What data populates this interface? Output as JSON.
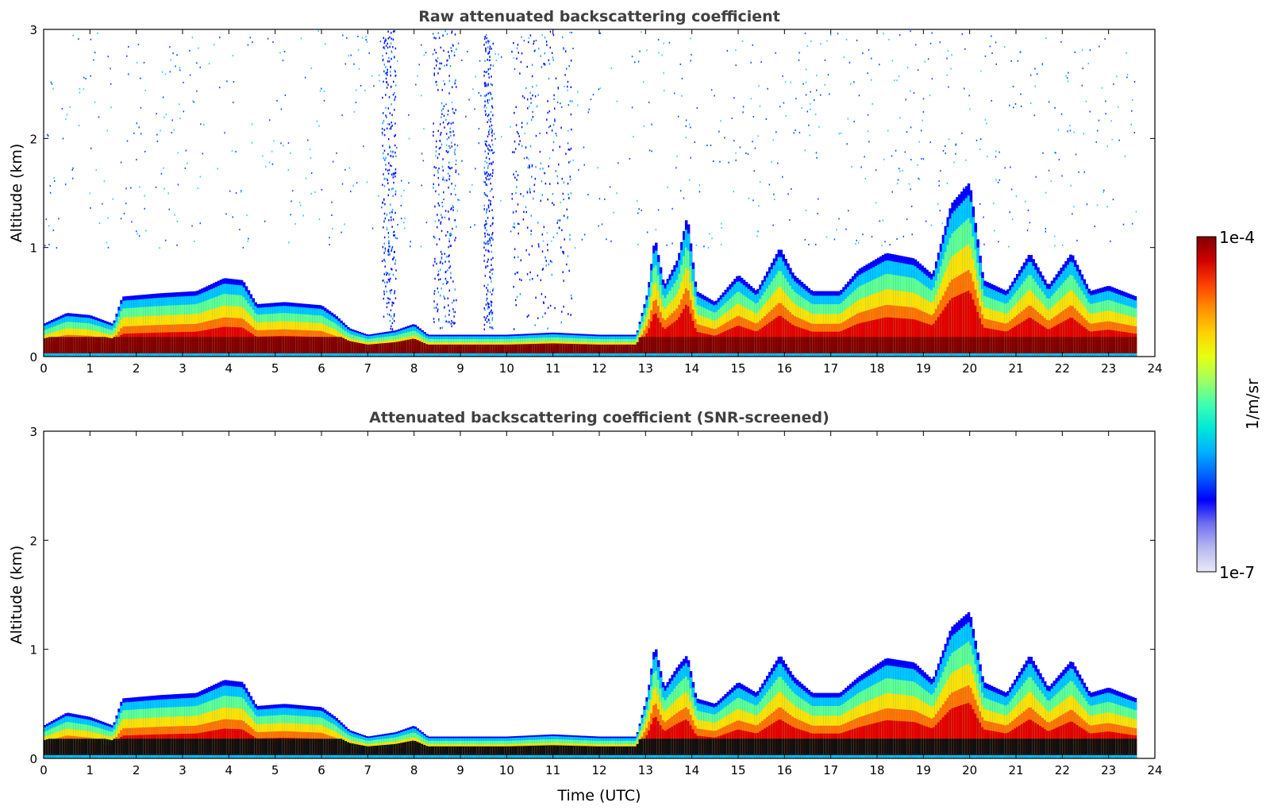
{
  "chart_data": [
    {
      "type": "heatmap",
      "title": "Raw attenuated backscattering coefficient",
      "ylabel": "Altitude (km)",
      "xlabel": "",
      "xlim": [
        0,
        24
      ],
      "ylim": [
        0,
        3
      ],
      "xticks": [
        "0",
        "1",
        "2",
        "3",
        "4",
        "5",
        "6",
        "7",
        "8",
        "9",
        "10",
        "11",
        "12",
        "13",
        "14",
        "15",
        "16",
        "17",
        "18",
        "19",
        "20",
        "21",
        "22",
        "23",
        "24"
      ],
      "yticks": [
        "0",
        "1",
        "2",
        "3"
      ],
      "layer_top_km": [
        [
          0,
          0.3
        ],
        [
          0.5,
          0.4
        ],
        [
          1.0,
          0.38
        ],
        [
          1.5,
          0.3
        ],
        [
          1.7,
          0.55
        ],
        [
          2.5,
          0.58
        ],
        [
          3.3,
          0.6
        ],
        [
          3.9,
          0.72
        ],
        [
          4.3,
          0.7
        ],
        [
          4.6,
          0.48
        ],
        [
          5.2,
          0.5
        ],
        [
          6.0,
          0.47
        ],
        [
          6.3,
          0.38
        ],
        [
          6.6,
          0.26
        ],
        [
          7.0,
          0.2
        ],
        [
          7.6,
          0.24
        ],
        [
          8.0,
          0.3
        ],
        [
          8.3,
          0.2
        ],
        [
          9.0,
          0.2
        ],
        [
          10.0,
          0.2
        ],
        [
          11.0,
          0.22
        ],
        [
          12.0,
          0.2
        ],
        [
          12.8,
          0.2
        ],
        [
          13.05,
          0.6
        ],
        [
          13.2,
          1.1
        ],
        [
          13.4,
          0.65
        ],
        [
          13.7,
          0.9
        ],
        [
          13.9,
          1.3
        ],
        [
          14.1,
          0.6
        ],
        [
          14.5,
          0.5
        ],
        [
          15.0,
          0.75
        ],
        [
          15.4,
          0.6
        ],
        [
          15.9,
          1.0
        ],
        [
          16.2,
          0.75
        ],
        [
          16.6,
          0.6
        ],
        [
          17.2,
          0.6
        ],
        [
          17.6,
          0.8
        ],
        [
          18.2,
          0.95
        ],
        [
          18.8,
          0.9
        ],
        [
          19.2,
          0.75
        ],
        [
          19.6,
          1.4
        ],
        [
          20.0,
          1.6
        ],
        [
          20.3,
          0.7
        ],
        [
          20.8,
          0.6
        ],
        [
          21.3,
          0.95
        ],
        [
          21.7,
          0.65
        ],
        [
          22.2,
          0.95
        ],
        [
          22.6,
          0.6
        ],
        [
          23.0,
          0.65
        ],
        [
          23.6,
          0.55
        ]
      ],
      "noise_band_hours": [
        [
          7.3,
          7.6
        ],
        [
          8.4,
          8.9
        ],
        [
          9.5,
          9.7
        ],
        [
          10.1,
          11.4
        ]
      ]
    },
    {
      "type": "heatmap",
      "title": "Attenuated backscattering coefficient (SNR-screened)",
      "ylabel": "Altitude (km)",
      "xlabel": "Time (UTC)",
      "xlim": [
        0,
        24
      ],
      "ylim": [
        0,
        3
      ],
      "xticks": [
        "0",
        "1",
        "2",
        "3",
        "4",
        "5",
        "6",
        "7",
        "8",
        "9",
        "10",
        "11",
        "12",
        "13",
        "14",
        "15",
        "16",
        "17",
        "18",
        "19",
        "20",
        "21",
        "22",
        "23",
        "24"
      ],
      "yticks": [
        "0",
        "1",
        "2",
        "3"
      ],
      "layer_top_km": [
        [
          0,
          0.3
        ],
        [
          0.5,
          0.42
        ],
        [
          1.0,
          0.38
        ],
        [
          1.5,
          0.3
        ],
        [
          1.7,
          0.55
        ],
        [
          2.5,
          0.58
        ],
        [
          3.3,
          0.6
        ],
        [
          3.9,
          0.72
        ],
        [
          4.3,
          0.7
        ],
        [
          4.6,
          0.48
        ],
        [
          5.2,
          0.5
        ],
        [
          6.0,
          0.47
        ],
        [
          6.3,
          0.38
        ],
        [
          6.6,
          0.26
        ],
        [
          7.0,
          0.2
        ],
        [
          7.6,
          0.24
        ],
        [
          8.0,
          0.3
        ],
        [
          8.3,
          0.2
        ],
        [
          9.0,
          0.2
        ],
        [
          10.0,
          0.2
        ],
        [
          11.0,
          0.22
        ],
        [
          12.0,
          0.2
        ],
        [
          12.8,
          0.2
        ],
        [
          13.05,
          0.6
        ],
        [
          13.2,
          1.05
        ],
        [
          13.4,
          0.65
        ],
        [
          13.7,
          0.85
        ],
        [
          13.9,
          0.95
        ],
        [
          14.1,
          0.55
        ],
        [
          14.5,
          0.5
        ],
        [
          15.0,
          0.7
        ],
        [
          15.4,
          0.6
        ],
        [
          15.9,
          0.95
        ],
        [
          16.2,
          0.75
        ],
        [
          16.6,
          0.6
        ],
        [
          17.2,
          0.6
        ],
        [
          17.6,
          0.75
        ],
        [
          18.2,
          0.92
        ],
        [
          18.8,
          0.88
        ],
        [
          19.2,
          0.72
        ],
        [
          19.6,
          1.2
        ],
        [
          20.0,
          1.35
        ],
        [
          20.3,
          0.7
        ],
        [
          20.8,
          0.6
        ],
        [
          21.3,
          0.95
        ],
        [
          21.7,
          0.65
        ],
        [
          22.2,
          0.9
        ],
        [
          22.6,
          0.6
        ],
        [
          23.0,
          0.65
        ],
        [
          23.6,
          0.55
        ]
      ]
    }
  ],
  "colorbar": {
    "label": "1/m/sr",
    "max_label": "1e-4",
    "min_label": "1e-7",
    "scale": "log",
    "range": [
      1e-07,
      0.0001
    ],
    "colors": [
      "#e8e8f8",
      "#b8b8f0",
      "#7070f0",
      "#0000ff",
      "#0060ff",
      "#00b0ff",
      "#00e8d8",
      "#40ffb0",
      "#a0ff60",
      "#e8ff10",
      "#ffd000",
      "#ff9000",
      "#ff4000",
      "#d00000",
      "#800000"
    ]
  }
}
